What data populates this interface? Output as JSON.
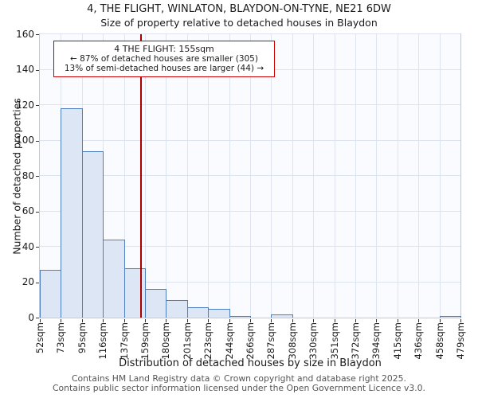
{
  "header": {
    "title": "4, THE FLIGHT, WINLATON, BLAYDON-ON-TYNE, NE21 6DW",
    "subtitle": "Size of property relative to detached houses in Blaydon"
  },
  "chart_data": {
    "type": "bar",
    "title": "4, THE FLIGHT, WINLATON, BLAYDON-ON-TYNE, NE21 6DW — Size of property relative to detached houses in Blaydon",
    "xlabel": "Distribution of detached houses by size in Blaydon",
    "ylabel": "Number of detached properties",
    "ylim": [
      0,
      160
    ],
    "yticks": [
      0,
      20,
      40,
      60,
      80,
      100,
      120,
      140,
      160
    ],
    "bin_edges_sqm": [
      52,
      73,
      95,
      116,
      137,
      159,
      180,
      201,
      223,
      244,
      266,
      287,
      308,
      330,
      351,
      372,
      394,
      415,
      436,
      458,
      479
    ],
    "bin_labels": [
      "52sqm",
      "73sqm",
      "95sqm",
      "116sqm",
      "137sqm",
      "159sqm",
      "180sqm",
      "201sqm",
      "223sqm",
      "244sqm",
      "266sqm",
      "287sqm",
      "308sqm",
      "330sqm",
      "351sqm",
      "372sqm",
      "394sqm",
      "415sqm",
      "436sqm",
      "458sqm",
      "479sqm"
    ],
    "values": [
      27,
      118,
      94,
      44,
      28,
      16,
      10,
      6,
      5,
      1,
      0,
      2,
      0,
      0,
      0,
      0,
      0,
      0,
      0,
      1
    ],
    "marker_value_sqm": 155,
    "grid": true,
    "annotation": {
      "line1": "4 THE FLIGHT: 155sqm",
      "line2": "← 87% of detached houses are smaller (305)",
      "line3": "13% of semi-detached houses are larger (44) →"
    },
    "colors": {
      "bar_fill": "#dce6f5",
      "bar_border": "#4d7ebf",
      "marker_line": "#aa0000",
      "annotation_border": "#cc0000",
      "grid_line": "#dde3ef",
      "plot_background": "#fafbfe"
    }
  },
  "footer": {
    "line1": "Contains HM Land Registry data © Crown copyright and database right 2025.",
    "line2": "Contains public sector information licensed under the Open Government Licence v3.0."
  }
}
